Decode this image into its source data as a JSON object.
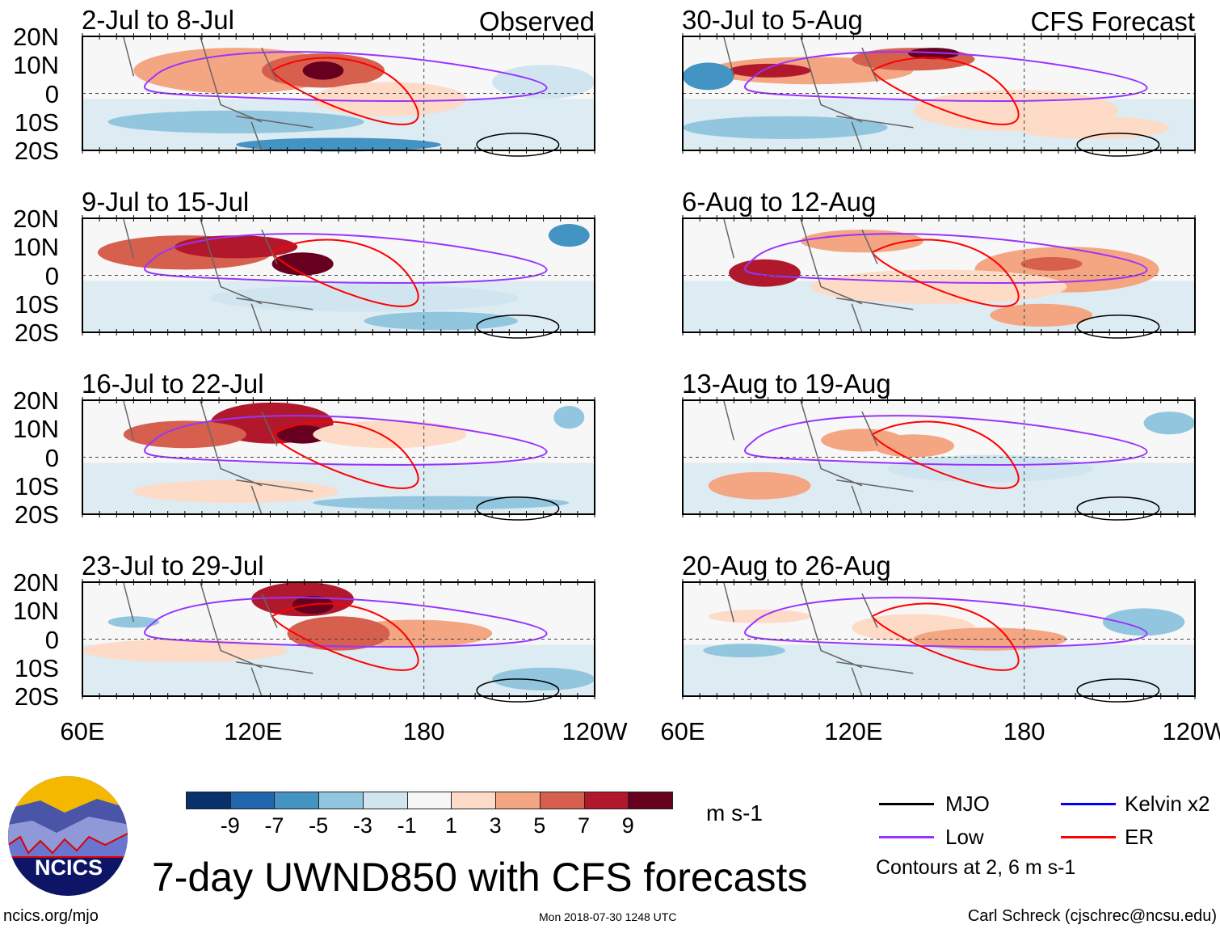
{
  "panels": [
    {
      "title": "2-Jul to 8-Jul",
      "tag": "Observed"
    },
    {
      "title": "30-Jul to 5-Aug",
      "tag": "CFS Forecast"
    },
    {
      "title": "9-Jul to 15-Jul"
    },
    {
      "title": "6-Aug to 12-Aug"
    },
    {
      "title": "16-Jul to 22-Jul"
    },
    {
      "title": "13-Aug to 19-Aug"
    },
    {
      "title": "23-Jul to 29-Jul"
    },
    {
      "title": "20-Aug to 26-Aug"
    }
  ],
  "lat_labels": [
    "20N",
    "10N",
    "0",
    "10S",
    "20S"
  ],
  "lon_labels": [
    "60E",
    "120E",
    "180",
    "120W"
  ],
  "colorbar": {
    "colors": [
      "#08306b",
      "#2166ac",
      "#4393c3",
      "#92c5de",
      "#d1e5f0",
      "#f7f7f7",
      "#fddbc7",
      "#f4a582",
      "#d6604d",
      "#b2182b",
      "#67001f"
    ],
    "ticks": [
      "-9",
      "-7",
      "-5",
      "-3",
      "-1",
      "1",
      "3",
      "5",
      "7",
      "9"
    ],
    "units": "m s-1"
  },
  "legend": {
    "items": [
      {
        "label": "MJO",
        "color": "#000000"
      },
      {
        "label": "Kelvin x2",
        "color": "#0000ff"
      },
      {
        "label": "Low",
        "color": "#9933ff"
      },
      {
        "label": "ER",
        "color": "#ff0000"
      }
    ],
    "note": "Contours at 2, 6 m s-1"
  },
  "title": "7-day UWND850 with CFS forecasts",
  "logo_text": "NCICS",
  "footer": {
    "url": "ncics.org/mjo",
    "timestamp": "Mon 2018-07-30 1248 UTC",
    "credit": "Carl Schreck (cjschrec@ncsu.edu)"
  }
}
